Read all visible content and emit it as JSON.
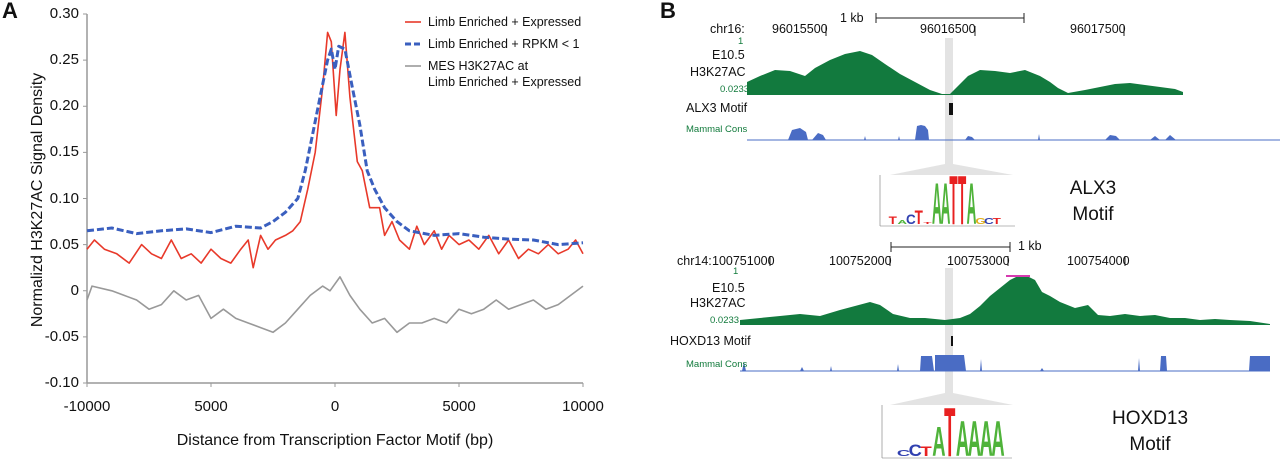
{
  "panel_a": {
    "label": "A",
    "legend": [
      {
        "label": "Limb Enriched + Expressed",
        "color": "#e8392a",
        "style": "solid"
      },
      {
        "label": "Limb Enriched + RPKM < 1",
        "color": "#3a5fbf",
        "style": "dashed"
      },
      {
        "label_lines": [
          "MES H3K27AC at",
          "Limb Enriched + Expressed"
        ],
        "color": "#999999",
        "style": "solid"
      }
    ]
  },
  "chart_data": {
    "type": "line",
    "title": "",
    "xlabel": "Distance from Transcription Factor Motif (bp)",
    "ylabel": "Normalizd H3K27AC Signal Density",
    "xlim": [
      -10000,
      10000
    ],
    "ylim": [
      -0.1,
      0.3
    ],
    "x_tick_labels": [
      "-10000",
      "5000",
      "0",
      "5000",
      "10000"
    ],
    "x_tick_values": [
      -10000,
      -5000,
      0,
      5000,
      10000
    ],
    "y_tick_labels": [
      "0.30",
      "0.25",
      "0.20",
      "0.15",
      "0.10",
      "0.05",
      "0",
      "-0.05",
      "-0.10"
    ],
    "y_tick_values": [
      0.3,
      0.25,
      0.2,
      0.15,
      0.1,
      0.05,
      0,
      -0.05,
      -0.1
    ],
    "grid": false,
    "legend_position": "top-right",
    "series": [
      {
        "name": "Limb Enriched + Expressed",
        "color": "#e8392a",
        "dashed": false,
        "x": [
          -10000,
          -9700,
          -9300,
          -8800,
          -8300,
          -7800,
          -7400,
          -7000,
          -6600,
          -6200,
          -5800,
          -5400,
          -5000,
          -4600,
          -4200,
          -3800,
          -3500,
          -3300,
          -3000,
          -2700,
          -2400,
          -2000,
          -1700,
          -1400,
          -1100,
          -800,
          -500,
          -300,
          -150,
          50,
          200,
          400,
          600,
          900,
          1100,
          1400,
          1800,
          2000,
          2300,
          2600,
          3000,
          3300,
          3600,
          4000,
          4300,
          4600,
          5000,
          5400,
          5800,
          6200,
          6600,
          7000,
          7400,
          7800,
          8200,
          8600,
          9000,
          9400,
          9700,
          10000
        ],
        "y": [
          0.045,
          0.055,
          0.045,
          0.04,
          0.03,
          0.05,
          0.04,
          0.035,
          0.055,
          0.035,
          0.04,
          0.03,
          0.045,
          0.035,
          0.03,
          0.045,
          0.055,
          0.025,
          0.06,
          0.045,
          0.055,
          0.06,
          0.065,
          0.075,
          0.11,
          0.15,
          0.22,
          0.28,
          0.27,
          0.19,
          0.24,
          0.28,
          0.21,
          0.14,
          0.13,
          0.09,
          0.09,
          0.06,
          0.075,
          0.055,
          0.045,
          0.07,
          0.05,
          0.065,
          0.045,
          0.06,
          0.05,
          0.055,
          0.045,
          0.06,
          0.04,
          0.055,
          0.035,
          0.045,
          0.04,
          0.05,
          0.04,
          0.045,
          0.055,
          0.04
        ]
      },
      {
        "name": "Limb Enriched + RPKM < 1",
        "color": "#3a5fbf",
        "dashed": true,
        "x": [
          -10000,
          -9000,
          -8000,
          -7000,
          -6000,
          -5000,
          -4000,
          -3000,
          -2500,
          -2000,
          -1500,
          -1200,
          -900,
          -600,
          -300,
          -150,
          0,
          150,
          400,
          700,
          1000,
          1300,
          1600,
          2000,
          2500,
          3000,
          4000,
          5000,
          6000,
          7000,
          8000,
          9000,
          10000
        ],
        "y": [
          0.065,
          0.068,
          0.062,
          0.065,
          0.067,
          0.063,
          0.07,
          0.068,
          0.075,
          0.085,
          0.1,
          0.13,
          0.17,
          0.21,
          0.25,
          0.262,
          0.24,
          0.265,
          0.262,
          0.22,
          0.18,
          0.13,
          0.11,
          0.09,
          0.075,
          0.065,
          0.06,
          0.062,
          0.058,
          0.056,
          0.055,
          0.05,
          0.052
        ]
      },
      {
        "name": "MES H3K27AC at Limb Enriched + Expressed",
        "color": "#999999",
        "dashed": false,
        "x": [
          -10000,
          -9800,
          -9000,
          -8500,
          -8000,
          -7500,
          -7000,
          -6500,
          -6000,
          -5500,
          -5000,
          -4500,
          -4000,
          -3500,
          -3000,
          -2500,
          -2000,
          -1500,
          -1000,
          -500,
          -200,
          200,
          600,
          1000,
          1500,
          2000,
          2500,
          3000,
          3500,
          4000,
          4500,
          5000,
          5500,
          6000,
          6500,
          7000,
          7500,
          8000,
          8500,
          9000,
          9500,
          10000
        ],
        "y": [
          -0.01,
          0.005,
          0.0,
          -0.005,
          -0.01,
          -0.02,
          -0.015,
          0.0,
          -0.01,
          -0.005,
          -0.03,
          -0.02,
          -0.03,
          -0.035,
          -0.04,
          -0.045,
          -0.035,
          -0.02,
          -0.005,
          0.005,
          0.0,
          0.015,
          -0.005,
          -0.02,
          -0.035,
          -0.03,
          -0.045,
          -0.035,
          -0.035,
          -0.03,
          -0.035,
          -0.02,
          -0.025,
          -0.02,
          -0.01,
          -0.02,
          -0.015,
          -0.01,
          -0.02,
          -0.015,
          -0.005,
          0.005
        ]
      }
    ]
  },
  "panel_b": {
    "label": "B",
    "top": {
      "scale_label": "1 kb",
      "chrom": "chr16:",
      "coords": [
        "96015500",
        "96016500",
        "96017500"
      ],
      "track_max": "1",
      "track_name_1": "E10.5",
      "track_name_2": "H3K27AC",
      "track_min": "0.0233",
      "motif_track": "ALX3 Motif",
      "cons_track": "Mammal Cons",
      "motif_title_1": "ALX3",
      "motif_title_2": "Motif",
      "logo_letters": "TACTTAATTAGCT"
    },
    "bottom": {
      "scale_label": "1 kb",
      "chrom": "chr14:",
      "coords": [
        "100751000",
        "100752000",
        "100753000",
        "100754000"
      ],
      "track_max": "1",
      "track_name_1": "E10.5",
      "track_name_2": "H3K27AC",
      "track_min": "0.0233",
      "motif_track": "HOXD13 Motif",
      "cons_track": "Mammal Cons",
      "motif_title_1": "HOXD13",
      "motif_title_2": "Motif",
      "logo_letters": "CCTATAAAA"
    },
    "colors": {
      "signal": "#127a3e",
      "cons": "#4a6cc4",
      "highlight": "#e0e0e0",
      "peak_mark": "#d63ab0"
    }
  }
}
